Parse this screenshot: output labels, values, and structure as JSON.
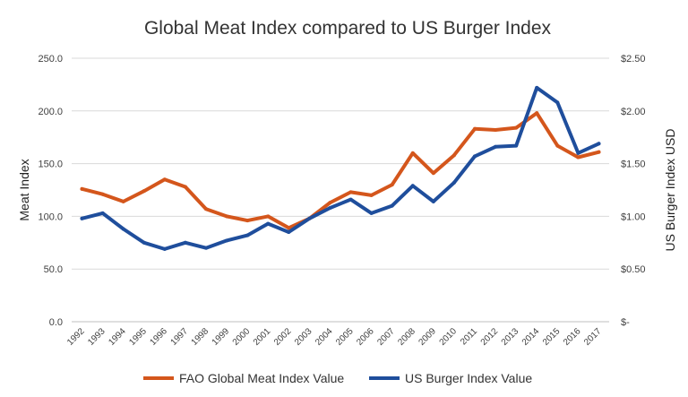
{
  "chart_data": {
    "type": "line",
    "title": "Global Meat Index compared to US Burger Index",
    "xlabel": "",
    "ylabel": "Meat Index",
    "ylabel_right": "US Burger Index USD",
    "categories": [
      "1992",
      "1993",
      "1994",
      "1995",
      "1996",
      "1997",
      "1998",
      "1999",
      "2000",
      "2001",
      "2002",
      "2003",
      "2004",
      "2005",
      "2006",
      "2007",
      "2008",
      "2009",
      "2010",
      "2011",
      "2012",
      "2013",
      "2014",
      "2015",
      "2016",
      "2017"
    ],
    "ylim": [
      0,
      250
    ],
    "yticks": [
      "0.0",
      "50.0",
      "100.0",
      "150.0",
      "200.0",
      "250.0"
    ],
    "ylim_right": [
      0,
      2.5
    ],
    "yticks_right": [
      "$-",
      "$0.50",
      "$1.00",
      "$1.50",
      "$2.00",
      "$2.50"
    ],
    "grid": "horizontal",
    "legend_position": "bottom",
    "series": [
      {
        "name": "FAO Global Meat Index Value",
        "axis": "left",
        "color": "#d4561c",
        "values": [
          126,
          121,
          114,
          124,
          135,
          128,
          107,
          100,
          96,
          100,
          89,
          98,
          113,
          123,
          120,
          130,
          160,
          141,
          158,
          183,
          182,
          184,
          198,
          167,
          156,
          161
        ]
      },
      {
        "name": "US Burger Index Value",
        "axis": "right",
        "color": "#1f4e9c",
        "values": [
          0.98,
          1.03,
          0.88,
          0.75,
          0.69,
          0.75,
          0.7,
          0.77,
          0.82,
          0.93,
          0.85,
          0.98,
          1.08,
          1.16,
          1.03,
          1.1,
          1.29,
          1.14,
          1.32,
          1.57,
          1.66,
          1.67,
          2.22,
          2.08,
          1.6,
          1.69
        ]
      }
    ]
  }
}
